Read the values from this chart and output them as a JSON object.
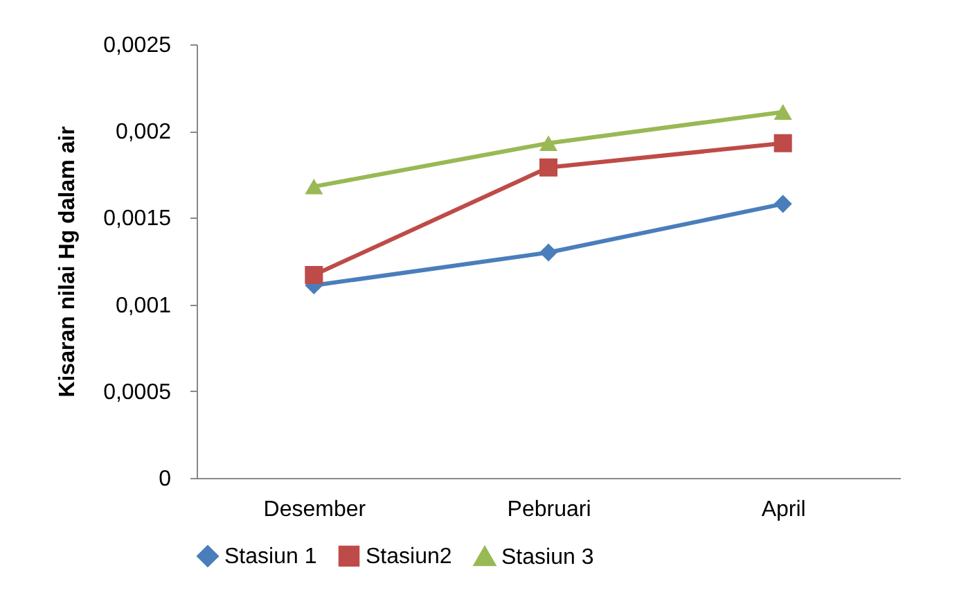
{
  "chart_data": {
    "type": "line",
    "ylabel": "Kisaran nilai Hg dalam air",
    "categories": [
      "Desember",
      "Pebruari",
      "April"
    ],
    "series": [
      {
        "name": "Stasiun 1",
        "color": "#4a7ebb",
        "marker": "diamond",
        "values": [
          0.00111,
          0.0013,
          0.00158
        ]
      },
      {
        "name": "Stasiun2",
        "color": "#be4b48",
        "marker": "square",
        "values": [
          0.00117,
          0.00179,
          0.00193
        ]
      },
      {
        "name": "Stasiun 3",
        "color": "#98b954",
        "marker": "triangle",
        "values": [
          0.00168,
          0.00193,
          0.00211
        ]
      }
    ],
    "ylim": [
      0,
      0.0025
    ],
    "yticks": [
      {
        "value": 0,
        "label": "0"
      },
      {
        "value": 0.0005,
        "label": "0,0005"
      },
      {
        "value": 0.001,
        "label": "0,001"
      },
      {
        "value": 0.0015,
        "label": "0,0015"
      },
      {
        "value": 0.002,
        "label": "0,002"
      },
      {
        "value": 0.0025,
        "label": "0,0025"
      }
    ],
    "grid": false,
    "legend": "bottom",
    "line_style": "solid"
  }
}
